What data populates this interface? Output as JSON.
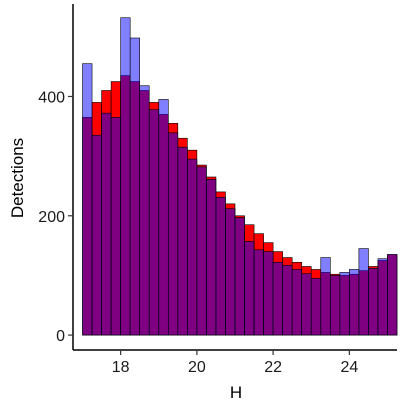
{
  "chart_data": {
    "type": "bar",
    "xlabel": "H",
    "ylabel": "Detections",
    "xlim": [
      16.75,
      25.25
    ],
    "ylim": [
      -25,
      555
    ],
    "x_ticks": [
      18,
      20,
      22,
      24
    ],
    "y_ticks": [
      0,
      200,
      400
    ],
    "bin_width": 0.25,
    "bin_start": 17.0,
    "grid": false,
    "legend": "none",
    "series": [
      {
        "color": "#ff0000",
        "values": [
          365,
          390,
          410,
          425,
          435,
          425,
          410,
          390,
          370,
          355,
          330,
          310,
          285,
          265,
          240,
          220,
          200,
          185,
          170,
          155,
          140,
          130,
          122,
          115,
          110,
          105,
          102,
          100,
          102,
          108,
          115,
          125,
          135
        ]
      },
      {
        "color": "#0000ff",
        "alpha": 0.5,
        "values": [
          455,
          335,
          372,
          365,
          532,
          498,
          418,
          378,
          395,
          339,
          315,
          295,
          282,
          261,
          231,
          212,
          197,
          157,
          143,
          140,
          122,
          117,
          110,
          103,
          95,
          130,
          100,
          105,
          110,
          145,
          112,
          128,
          135
        ]
      }
    ]
  }
}
